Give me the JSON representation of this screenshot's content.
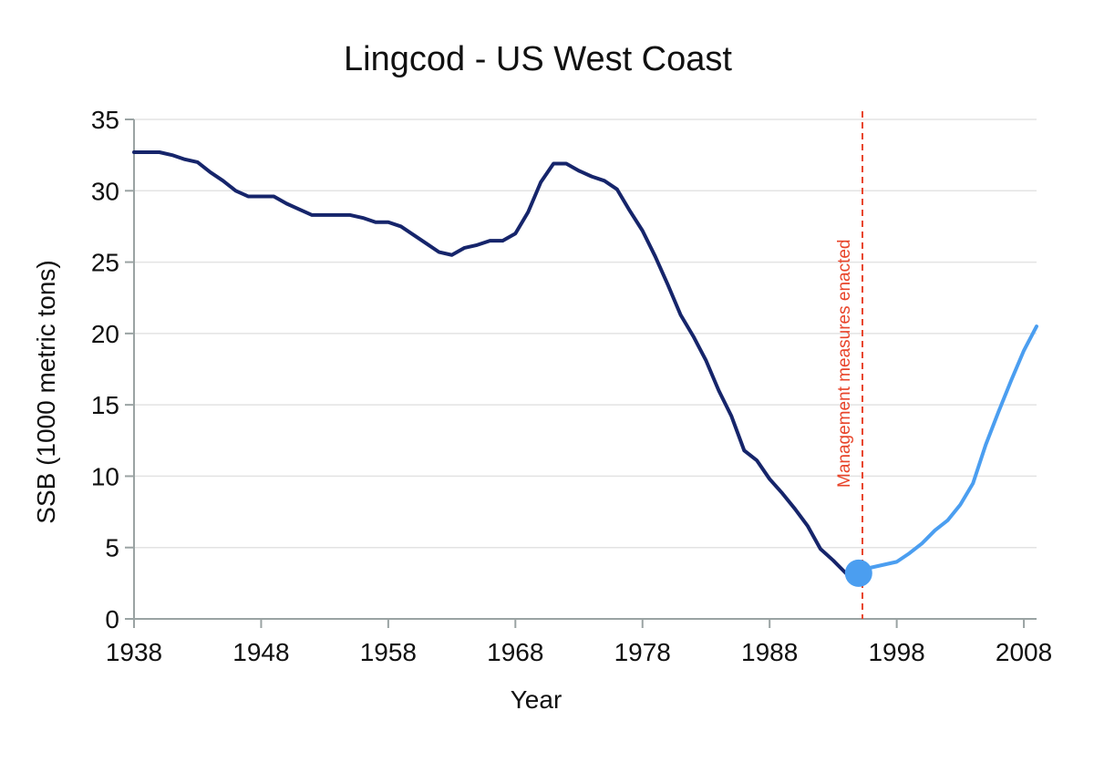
{
  "chart_data": {
    "type": "line",
    "title": "Lingcod - US West Coast",
    "xlabel": "Year",
    "ylabel": "SSB (1000 metric tons)",
    "xlim": [
      1938,
      2009
    ],
    "ylim": [
      0,
      35
    ],
    "x_ticks": [
      1938,
      1948,
      1958,
      1968,
      1978,
      1988,
      1998,
      2008
    ],
    "y_ticks": [
      0,
      5,
      10,
      15,
      20,
      25,
      30,
      35
    ],
    "grid": "horizontal",
    "series": [
      {
        "color": "#16256b",
        "x": [
          1938,
          1939,
          1940,
          1941,
          1942,
          1943,
          1944,
          1945,
          1946,
          1947,
          1948,
          1949,
          1950,
          1951,
          1952,
          1953,
          1954,
          1955,
          1956,
          1957,
          1958,
          1959,
          1960,
          1961,
          1962,
          1963,
          1964,
          1965,
          1966,
          1967,
          1968,
          1969,
          1970,
          1971,
          1972,
          1973,
          1974,
          1975,
          1976,
          1977,
          1978,
          1979,
          1980,
          1981,
          1982,
          1983,
          1984,
          1985,
          1986,
          1987,
          1988,
          1989,
          1990,
          1991,
          1992,
          1993,
          1994,
          1995
        ],
        "y": [
          32.7,
          32.7,
          32.7,
          32.5,
          32.2,
          32.0,
          31.3,
          30.7,
          30.0,
          29.6,
          29.6,
          29.6,
          29.1,
          28.7,
          28.3,
          28.3,
          28.3,
          28.3,
          28.1,
          27.8,
          27.8,
          27.5,
          26.9,
          26.3,
          25.7,
          25.5,
          26.0,
          26.2,
          26.5,
          26.5,
          27.0,
          28.5,
          30.6,
          31.9,
          31.9,
          31.4,
          31.0,
          30.7,
          30.1,
          28.6,
          27.2,
          25.4,
          23.4,
          21.3,
          19.8,
          18.1,
          16.0,
          14.2,
          11.8,
          11.1,
          9.8,
          8.8,
          7.7,
          6.5,
          4.9,
          4.1,
          3.2,
          3.2
        ]
      },
      {
        "color": "#4b9ef0",
        "x": [
          1995,
          1996,
          1997,
          1998,
          1999,
          2000,
          2001,
          2002,
          2003,
          2004,
          2005,
          2006,
          2007,
          2008,
          2009
        ],
        "y": [
          3.2,
          3.6,
          3.8,
          4.0,
          4.6,
          5.3,
          6.2,
          6.9,
          8.0,
          9.5,
          12.2,
          14.5,
          16.7,
          18.8,
          20.5
        ]
      }
    ],
    "highlight_point": {
      "x": 1995,
      "y": 3.2,
      "color": "#4b9ef0"
    },
    "vertical_line": {
      "x": 1995.3,
      "color": "#e8442a",
      "style": "dashed"
    },
    "annotation": "Management measures enacted"
  }
}
